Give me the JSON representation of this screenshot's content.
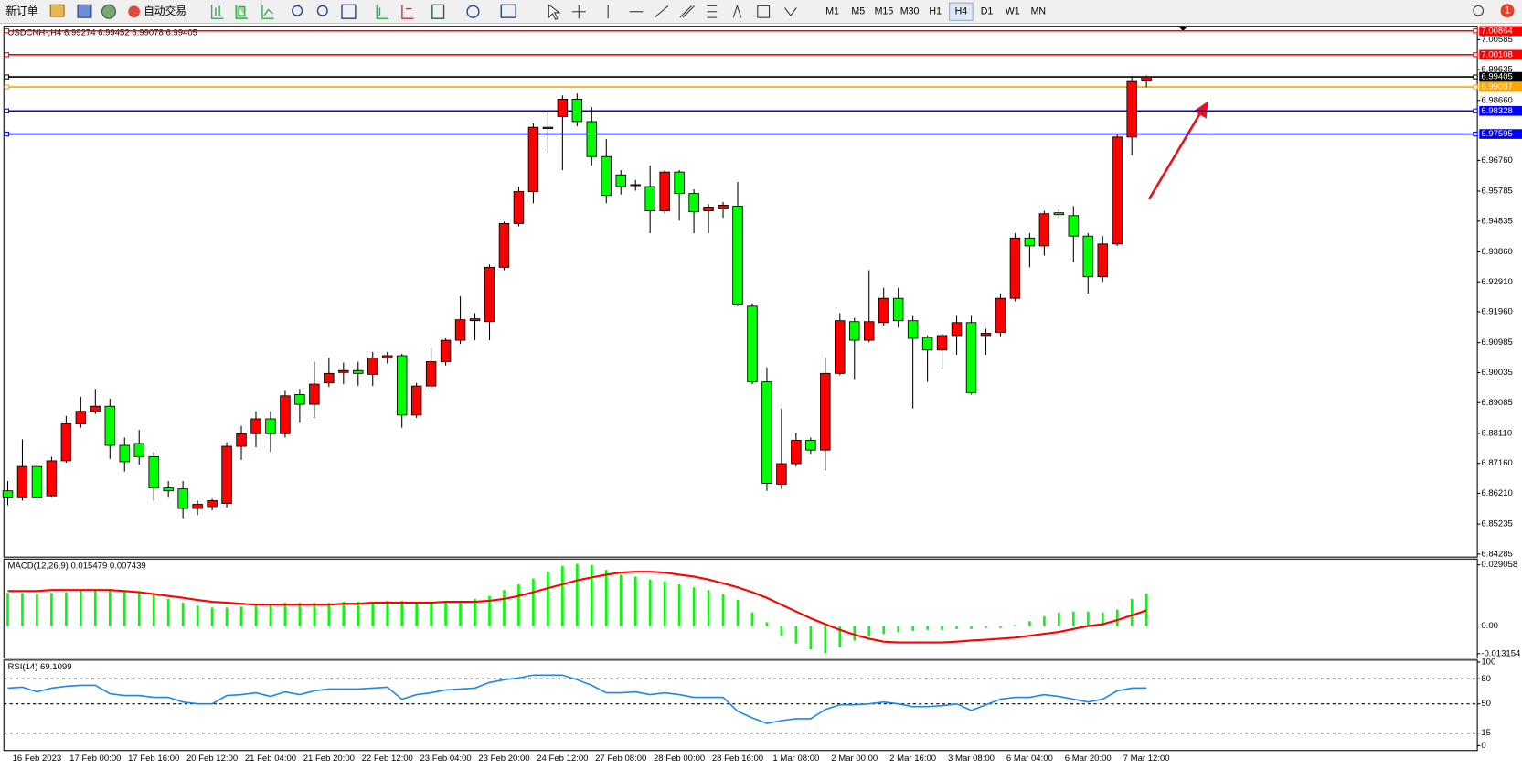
{
  "toolbar": {
    "new_order": "新订单",
    "auto_trading": "自动交易",
    "timeframes": [
      "M1",
      "M5",
      "M15",
      "M30",
      "H1",
      "H4",
      "D1",
      "W1",
      "MN"
    ],
    "active_timeframe": "H4",
    "badge": "1"
  },
  "chart_data": [
    {
      "type": "candlestick",
      "title": "USDCNH-,H4  6.99274 6.99452 6.99078 6.99405",
      "up_color": "#ff0000",
      "down_color": "#00ff00",
      "categories": [
        null,
        null,
        "16 Feb 2023",
        null,
        null,
        null,
        "17 Feb 00:00",
        null,
        null,
        null,
        "17 Feb 16:00",
        null,
        null,
        null,
        "20 Feb 12:00",
        null,
        null,
        null,
        "21 Feb 04:00",
        null,
        null,
        null,
        "21 Feb 20:00",
        null,
        null,
        null,
        "22 Feb 12:00",
        null,
        null,
        null,
        "23 Feb 04:00",
        null,
        null,
        null,
        "23 Feb 20:00",
        null,
        null,
        null,
        "24 Feb 12:00",
        null,
        null,
        null,
        "27 Feb 08:00",
        null,
        null,
        null,
        "28 Feb 00:00",
        null,
        null,
        null,
        "28 Feb 16:00",
        null,
        null,
        null,
        "1 Mar 08:00",
        null,
        null,
        null,
        "2 Mar 00:00",
        null,
        null,
        null,
        "2 Mar 16:00",
        null,
        null,
        null,
        "3 Mar 08:00",
        null,
        null,
        null,
        "6 Mar 04:00",
        null,
        null,
        null,
        "6 Mar 20:00",
        null,
        null,
        null,
        "7 Mar 12:00"
      ],
      "open": [
        6.8629,
        6.8607,
        6.8706,
        6.8613,
        6.8724,
        6.8841,
        6.8881,
        6.8897,
        6.8773,
        6.8779,
        6.8737,
        6.8638,
        6.8635,
        6.8573,
        6.8579,
        6.8589,
        6.877,
        6.881,
        6.8857,
        6.881,
        6.8934,
        6.8903,
        6.8971,
        6.9004,
        6.901,
        6.8998,
        6.905,
        6.9057,
        6.8869,
        6.8961,
        6.9038,
        6.9106,
        6.9168,
        6.9165,
        6.9337,
        6.9476,
        6.9577,
        6.9777,
        6.9815,
        6.987,
        6.9799,
        6.9688,
        6.963,
        6.9596,
        6.9593,
        6.9516,
        6.9639,
        6.9571,
        6.9516,
        6.9525,
        6.9531,
        6.9214,
        6.8974,
        6.865,
        6.8715,
        6.8789,
        6.8758,
        6.9001,
        6.9165,
        6.9106,
        6.9162,
        6.9239,
        6.9168,
        6.9115,
        6.9075,
        6.9121,
        6.9162,
        6.9121,
        6.9131,
        6.9239,
        6.943,
        6.9405,
        6.951,
        6.9501,
        6.9436,
        6.9307,
        6.9411,
        6.975,
        6.99274
      ],
      "high": [
        6.866,
        6.8792,
        6.8718,
        6.8737,
        6.8866,
        6.8927,
        6.8952,
        6.8921,
        6.8798,
        6.8822,
        6.8752,
        6.866,
        6.866,
        6.8598,
        6.8604,
        6.8783,
        6.8835,
        6.8881,
        6.8881,
        6.8946,
        6.8952,
        6.9038,
        6.905,
        6.9035,
        6.9038,
        6.9069,
        6.9069,
        6.9063,
        6.8971,
        6.9082,
        6.9112,
        6.9245,
        6.9192,
        6.9346,
        6.9482,
        6.9593,
        6.9793,
        6.9827,
        6.9882,
        6.9888,
        6.9845,
        6.9744,
        6.9645,
        6.9614,
        6.966,
        6.9645,
        6.9645,
        6.9584,
        6.9537,
        6.9544,
        6.9608,
        6.9223,
        6.902,
        6.889,
        6.8813,
        6.8798,
        6.905,
        6.9192,
        6.9177,
        6.9328,
        6.9272,
        6.9272,
        6.9183,
        6.9121,
        6.9128,
        6.9183,
        6.9183,
        6.9143,
        6.9254,
        6.9445,
        6.9445,
        6.9516,
        6.9522,
        6.9531,
        6.9445,
        6.9436,
        6.976,
        6.9944,
        6.99452
      ],
      "low": [
        6.8583,
        6.8598,
        6.8598,
        6.8607,
        6.8718,
        6.8829,
        6.8872,
        6.873,
        6.869,
        6.8712,
        6.8598,
        6.8607,
        6.8542,
        6.8552,
        6.8567,
        6.8576,
        6.8727,
        6.8767,
        6.8752,
        6.8798,
        6.8844,
        6.886,
        6.8958,
        6.8967,
        6.8961,
        6.8961,
        6.9032,
        6.8829,
        6.886,
        6.8952,
        6.9026,
        6.9094,
        6.9106,
        6.9106,
        6.9328,
        6.9467,
        6.954,
        6.9701,
        6.9645,
        6.9784,
        6.966,
        6.954,
        6.9568,
        6.958,
        6.9445,
        6.9507,
        6.9485,
        6.9445,
        6.9445,
        6.9494,
        6.9214,
        6.8967,
        6.8629,
        6.8635,
        6.8706,
        6.8746,
        6.8693,
        6.8995,
        6.8983,
        6.91,
        6.9152,
        6.9146,
        6.889,
        6.8974,
        6.9014,
        6.906,
        6.8934,
        6.906,
        6.9119,
        6.923,
        6.9337,
        6.9374,
        6.9494,
        6.9353,
        6.9254,
        6.9291,
        6.9405,
        6.9692,
        6.99078
      ],
      "close": [
        6.8607,
        6.8706,
        6.8607,
        6.8724,
        6.8841,
        6.8881,
        6.8897,
        6.8773,
        6.8721,
        6.8737,
        6.8638,
        6.8629,
        6.8573,
        6.8586,
        6.8598,
        6.877,
        6.881,
        6.8857,
        6.881,
        6.893,
        6.8903,
        6.8967,
        6.9001,
        6.901,
        6.9001,
        6.905,
        6.9057,
        6.8869,
        6.8961,
        6.9038,
        6.9106,
        6.9171,
        6.9174,
        6.9337,
        6.9476,
        6.9577,
        6.9781,
        6.9781,
        6.987,
        6.9799,
        6.9688,
        6.9565,
        6.9593,
        6.9599,
        6.9516,
        6.9639,
        6.9571,
        6.9513,
        6.9528,
        6.9534,
        6.922,
        6.8974,
        6.8653,
        6.8715,
        6.8789,
        6.8758,
        6.9001,
        6.9168,
        6.9106,
        6.9165,
        6.9239,
        6.9168,
        6.9112,
        6.9075,
        6.9121,
        6.9162,
        6.894,
        6.9128,
        6.9239,
        6.943,
        6.9405,
        6.9507,
        6.9504,
        6.9436,
        6.9307,
        6.9411,
        6.975,
        6.9926,
        6.99405
      ],
      "ylim": [
        6.8419,
        7.0101
      ],
      "yticks": [
        {
          "value": 7.00585,
          "label": "7.00585"
        },
        {
          "value": 6.99635,
          "label": "6.99635"
        },
        {
          "value": 6.9866,
          "label": "6.98660"
        },
        {
          "value": 6.9676,
          "label": "6.96760"
        },
        6.95785,
        6.94835,
        {
          "value": 6.9386,
          "label": "6.93860"
        },
        {
          "value": 6.9291,
          "label": "6.92910"
        },
        {
          "value": 6.9196,
          "label": "6.91960"
        },
        6.90985,
        6.90035,
        6.89085,
        {
          "value": 6.8811,
          "label": "6.88110"
        },
        {
          "value": 6.8716,
          "label": "6.87160"
        },
        {
          "value": 6.8621,
          "label": "6.86210"
        },
        6.85235,
        6.84285
      ],
      "hlines": [
        {
          "value": 7.00864,
          "color": "#ff0000"
        },
        {
          "value": 7.00108,
          "color": "#ff0000"
        },
        {
          "value": 6.99405,
          "color": "#000000"
        },
        {
          "value": 6.99087,
          "color": "#ffa500"
        },
        {
          "value": 6.98328,
          "color": "#0000ff"
        },
        {
          "value": 6.97595,
          "color": "#0000ff"
        }
      ]
    },
    {
      "type": "macd",
      "title": "MACD(12,26,9) 0.015479 0.007439",
      "histogram_color": "#00ff00",
      "signal_color": "#ff0000",
      "histogram": [
        0.0157,
        0.0157,
        0.0152,
        0.0157,
        0.0161,
        0.0171,
        0.0175,
        0.0175,
        0.0166,
        0.0157,
        0.0148,
        0.0129,
        0.0111,
        0.0097,
        0.0088,
        0.0088,
        0.0092,
        0.0097,
        0.0101,
        0.0111,
        0.0111,
        0.0111,
        0.0111,
        0.0115,
        0.0115,
        0.0115,
        0.012,
        0.012,
        0.0111,
        0.0111,
        0.0111,
        0.0115,
        0.0129,
        0.0143,
        0.0171,
        0.0198,
        0.0226,
        0.0258,
        0.0286,
        0.0295,
        0.029,
        0.0267,
        0.0244,
        0.0235,
        0.0221,
        0.0212,
        0.0198,
        0.0184,
        0.0171,
        0.0152,
        0.0124,
        0.0065,
        0.0018,
        -0.0046,
        -0.0083,
        -0.0111,
        -0.0129,
        -0.0101,
        -0.0069,
        -0.0051,
        -0.0037,
        -0.0028,
        -0.0023,
        -0.0018,
        -0.0018,
        -0.0014,
        -0.0014,
        -0.0009,
        -0.0009,
        0.0005,
        0.0023,
        0.0046,
        0.0065,
        0.0069,
        0.0069,
        0.0065,
        0.0078,
        0.0129,
        0.0155
      ],
      "signal": [
        0.0166,
        0.0166,
        0.0166,
        0.0171,
        0.0171,
        0.0171,
        0.0171,
        0.0171,
        0.0166,
        0.0161,
        0.0152,
        0.0143,
        0.0134,
        0.0124,
        0.0115,
        0.0111,
        0.0106,
        0.0101,
        0.0101,
        0.0101,
        0.0101,
        0.0101,
        0.0101,
        0.0106,
        0.0106,
        0.0111,
        0.0111,
        0.0111,
        0.0111,
        0.0111,
        0.0115,
        0.0115,
        0.0115,
        0.012,
        0.0129,
        0.0143,
        0.0161,
        0.018,
        0.0198,
        0.0217,
        0.0231,
        0.0244,
        0.0254,
        0.0258,
        0.0258,
        0.0254,
        0.0244,
        0.0235,
        0.0221,
        0.0203,
        0.0184,
        0.0161,
        0.0134,
        0.0101,
        0.0069,
        0.0037,
        0.0009,
        -0.0018,
        -0.0041,
        -0.006,
        -0.0074,
        -0.0078,
        -0.0078,
        -0.0078,
        -0.0078,
        -0.0074,
        -0.0069,
        -0.0065,
        -0.006,
        -0.0055,
        -0.0046,
        -0.0037,
        -0.0028,
        -0.0014,
        0,
        0.0009,
        0.0028,
        0.0051,
        0.0074
      ],
      "ylim": [
        -0.0148,
        0.0309
      ],
      "yticks": [
        0.029058,
        {
          "value": 0,
          "label": "0.00"
        },
        -0.013154
      ]
    },
    {
      "type": "rsi",
      "title": "RSI(14) 69.1099",
      "color": "#1e88e5",
      "values": [
        68.9,
        70,
        64.4,
        68.9,
        71.1,
        72.2,
        72.2,
        62.2,
        60,
        60,
        57.8,
        57.8,
        52.2,
        50,
        50,
        60,
        61.1,
        63.3,
        58.9,
        64.4,
        61.1,
        65.6,
        67.8,
        67.8,
        67.8,
        68.9,
        70,
        55.6,
        61.1,
        63.3,
        66.7,
        67.8,
        68.9,
        75.6,
        78.9,
        81.1,
        84.4,
        84.4,
        84.4,
        78.9,
        72.2,
        63.3,
        63.3,
        64.4,
        61.1,
        63.3,
        61.1,
        57.8,
        57.8,
        57.8,
        41.1,
        33.3,
        26.7,
        30,
        32.2,
        32.2,
        43.3,
        48.9,
        48.9,
        50,
        52.2,
        50,
        46.7,
        46.7,
        47.8,
        50,
        42.2,
        48.9,
        55.6,
        57.8,
        57.8,
        61.1,
        58.9,
        55.6,
        52.2,
        55.6,
        65.6,
        68.9,
        69.11
      ],
      "ylim": [
        0,
        100
      ],
      "yticks": [
        100,
        80,
        50,
        15,
        0
      ],
      "levels": [
        80,
        50,
        15
      ]
    }
  ]
}
